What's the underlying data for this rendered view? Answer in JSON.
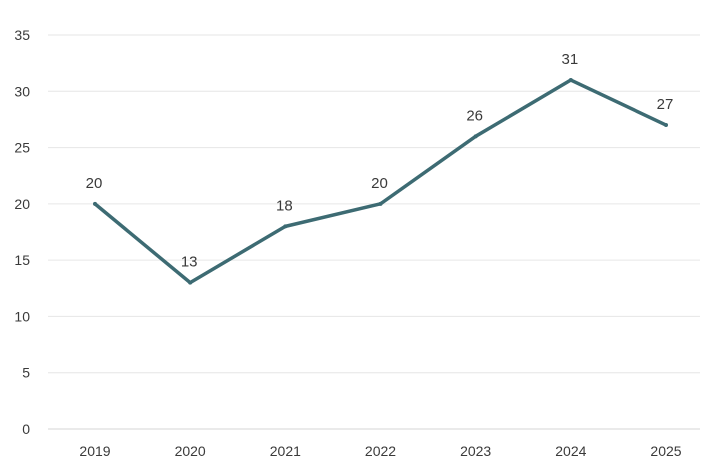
{
  "chart_data": {
    "type": "line",
    "title": "",
    "xlabel": "",
    "ylabel": "",
    "categories": [
      "2019",
      "2020",
      "2021",
      "2022",
      "2023",
      "2024",
      "2025"
    ],
    "series": [
      {
        "values": [
          20,
          13,
          18,
          20,
          26,
          31,
          27
        ]
      }
    ],
    "data_labels": [
      "20",
      "13",
      "18",
      "20",
      "26",
      "31",
      "27"
    ],
    "ylim": [
      0,
      35
    ],
    "y_ticks": [
      0,
      5,
      10,
      15,
      20,
      25,
      30,
      35
    ],
    "y_tick_labels": [
      "0",
      "5",
      "10",
      "15",
      "20",
      "25",
      "30",
      "35"
    ],
    "grid": true,
    "legend": "none",
    "colors": {
      "line": "#3d6b73",
      "grid": "#e6e6e6",
      "text": "#3a3a3a"
    }
  }
}
